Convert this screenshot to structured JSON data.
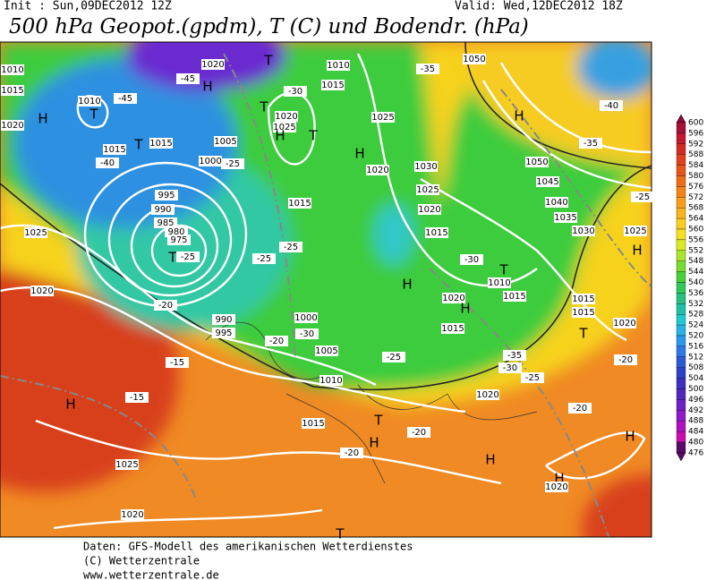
{
  "header": {
    "init": "Init : Sun,09DEC2012 12Z",
    "valid": "Valid: Wed,12DEC2012 18Z",
    "title": "500 hPa Geopot.(gpdm), T (C) und Bodendr. (hPa)"
  },
  "map_labels": [
    "1010",
    "1015",
    "1020",
    "H",
    "1010",
    "T",
    "-45",
    "1020",
    "-45",
    "H",
    "T",
    "1010",
    "1015",
    "-30",
    "T",
    "1020",
    "1025",
    "H",
    "T",
    "1005",
    "1015",
    "1015",
    "T",
    "-40",
    "1000",
    "-25",
    "H",
    "1020",
    "1025",
    "1030",
    "-35",
    "1050",
    "H",
    "-40",
    "-35",
    "1050",
    "1045",
    "1040",
    "1035",
    "1030",
    "1025",
    "-25",
    "995",
    "990",
    "985",
    "980",
    "975",
    "T",
    "-25",
    "-20",
    "1025",
    "1020",
    "1015",
    "-25",
    "-25",
    "H",
    "1015",
    "1020",
    "1025",
    "-30",
    "T",
    "1010",
    "1015",
    "1020",
    "H",
    "1015",
    "1015",
    "1015",
    "1020",
    "T",
    "H",
    "990",
    "995",
    "1000",
    "-30",
    "-20",
    "1005",
    "-25",
    "-35",
    "-30",
    "-25",
    "1020",
    "-20",
    "-15",
    "-15",
    "H",
    "-20",
    "1010",
    "1015",
    "T",
    "H",
    "-20",
    "-20",
    "1025",
    "H",
    "H",
    "1020",
    "H",
    "1020",
    "T"
  ],
  "colorbar": {
    "ticks": [
      600,
      596,
      592,
      588,
      584,
      580,
      576,
      572,
      568,
      564,
      560,
      556,
      552,
      548,
      544,
      540,
      536,
      532,
      528,
      524,
      520,
      516,
      512,
      508,
      504,
      500,
      496,
      492,
      488,
      484,
      480,
      476
    ],
    "colors": [
      "#8c0a3c",
      "#a8103a",
      "#c21830",
      "#d42a24",
      "#e0401c",
      "#e8561a",
      "#f06c18",
      "#f48418",
      "#f89c1a",
      "#fab41c",
      "#fccc1e",
      "#f4e020",
      "#d8ec24",
      "#a8e42a",
      "#78dc30",
      "#48d038",
      "#30c858",
      "#28c080",
      "#20c0a8",
      "#20c8d0",
      "#28b4e8",
      "#2c98f0",
      "#2c78e8",
      "#2c58d8",
      "#2c40c8",
      "#3c30c0",
      "#5028c0",
      "#7020c8",
      "#9018c8",
      "#b010c0",
      "#c80cb0",
      "#5a0a6a"
    ]
  },
  "footer": {
    "line1": "Daten: GFS-Modell des amerikanischen Wetterdienstes",
    "line2": "(C) Wetterzentrale",
    "line3": "www.wetterzentrale.de"
  }
}
